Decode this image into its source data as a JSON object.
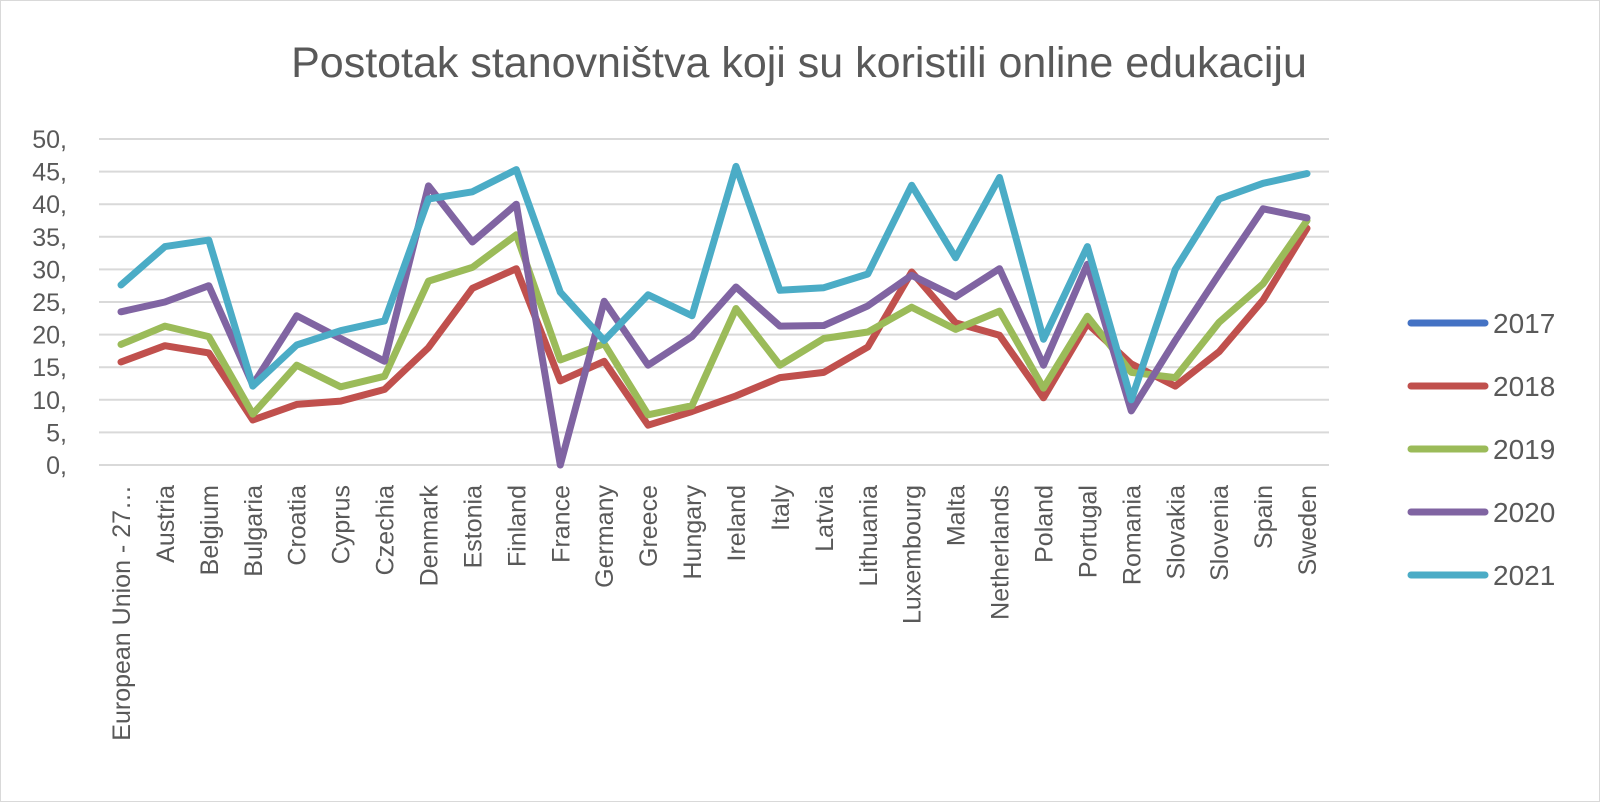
{
  "chart_data": {
    "type": "line",
    "title": "Postotak stanovništva koji su koristili online edukaciju",
    "xlabel": "",
    "ylabel": "",
    "ylim": [
      0,
      50
    ],
    "y_ticks": [
      "0,",
      "5,",
      "10,",
      "15,",
      "20,",
      "25,",
      "30,",
      "35,",
      "40,",
      "45,",
      "50,"
    ],
    "grid": true,
    "legend_position": "right",
    "categories": [
      "European Union - 27…",
      "Austria",
      "Belgium",
      "Bulgaria",
      "Croatia",
      "Cyprus",
      "Czechia",
      "Denmark",
      "Estonia",
      "Finland",
      "France",
      "Germany",
      "Greece",
      "Hungary",
      "Ireland",
      "Italy",
      "Latvia",
      "Lithuania",
      "Luxembourg",
      "Malta",
      "Netherlands",
      "Poland",
      "Portugal",
      "Romania",
      "Slovakia",
      "Slovenia",
      "Spain",
      "Sweden"
    ],
    "series": [
      {
        "name": "2017",
        "color": "#4472c4",
        "values": [
          null,
          null,
          null,
          null,
          null,
          null,
          null,
          null,
          null,
          null,
          null,
          null,
          null,
          null,
          null,
          null,
          null,
          null,
          null,
          null,
          null,
          null,
          null,
          null,
          null,
          null,
          null,
          null
        ]
      },
      {
        "name": "2018",
        "color": "#c0504d",
        "values": [
          15.8,
          18.3,
          17.2,
          6.9,
          9.3,
          9.8,
          11.6,
          18.0,
          27.1,
          30.1,
          12.9,
          15.9,
          6.1,
          8.2,
          10.6,
          13.4,
          14.2,
          18.1,
          29.6,
          21.8,
          19.9,
          10.3,
          21.7,
          15.5,
          12.1,
          17.4,
          25.3,
          36.3
        ]
      },
      {
        "name": "2019",
        "color": "#9bbb59",
        "values": [
          18.5,
          21.3,
          19.7,
          7.8,
          15.3,
          12.0,
          13.6,
          28.2,
          30.3,
          35.3,
          16.1,
          18.6,
          7.7,
          9.1,
          24.0,
          15.3,
          19.4,
          20.4,
          24.2,
          20.8,
          23.6,
          11.8,
          22.8,
          14.2,
          13.4,
          21.9,
          27.8,
          37.5
        ]
      },
      {
        "name": "2020",
        "color": "#8064a2",
        "values": [
          23.5,
          25.0,
          27.5,
          12.3,
          22.9,
          19.4,
          15.9,
          42.8,
          34.2,
          40.0,
          0.0,
          25.1,
          15.3,
          19.7,
          27.3,
          21.3,
          21.4,
          24.4,
          29.1,
          25.8,
          30.1,
          15.3,
          30.8,
          8.3,
          19.1,
          29.3,
          39.3,
          37.9
        ]
      },
      {
        "name": "2021",
        "color": "#4bacc6",
        "values": [
          27.6,
          33.5,
          34.5,
          12.1,
          18.4,
          20.6,
          22.1,
          40.8,
          41.9,
          45.3,
          26.5,
          19.1,
          26.1,
          22.9,
          45.8,
          26.8,
          27.2,
          29.3,
          42.9,
          31.8,
          44.1,
          19.3,
          33.5,
          10.0,
          30.0,
          40.8,
          43.2,
          44.7
        ]
      }
    ]
  }
}
